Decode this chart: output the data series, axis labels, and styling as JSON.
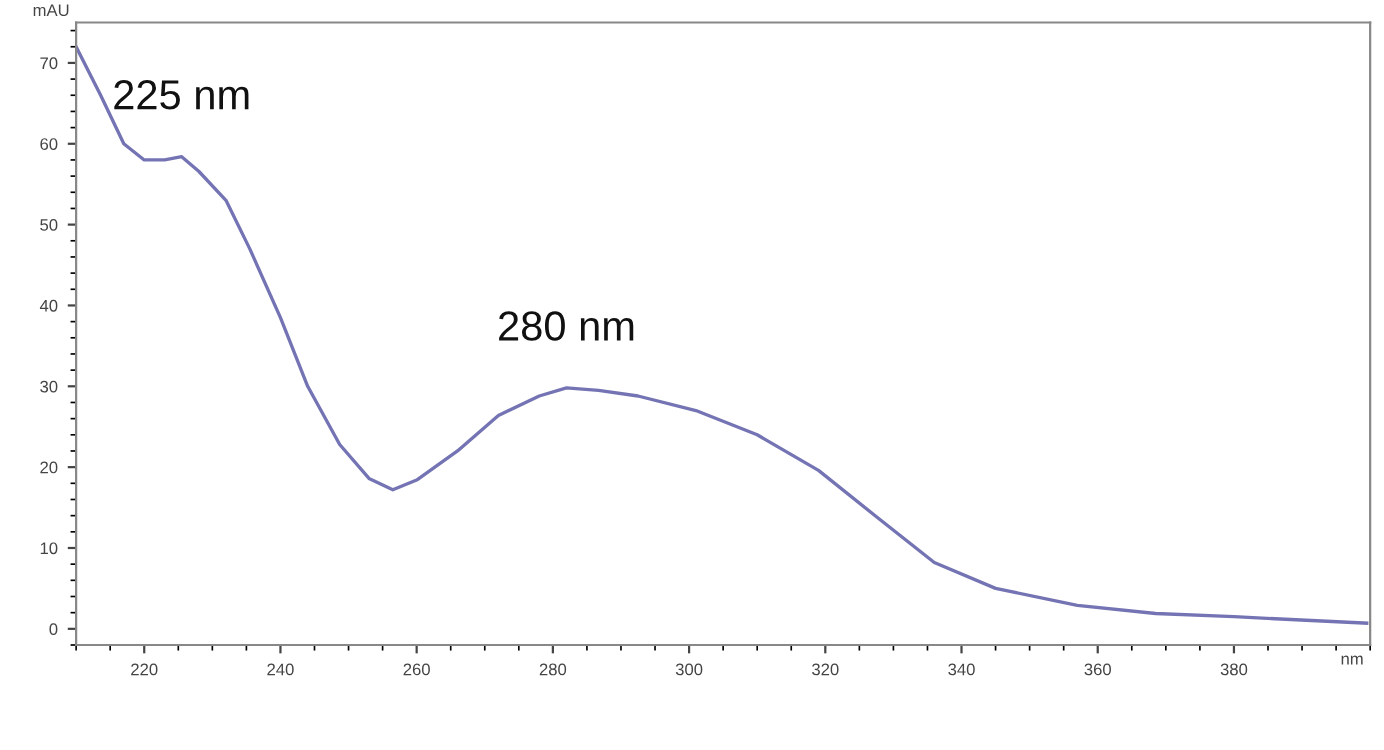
{
  "chart_data": {
    "type": "line",
    "xlabel": "nm",
    "ylabel": "mAU",
    "x": [
      210,
      213.6,
      217,
      220,
      223,
      225.5,
      228,
      232,
      235.5,
      240,
      244,
      248.7,
      253,
      256.5,
      260,
      266,
      272,
      278,
      282,
      286.7,
      292.5,
      301,
      310,
      319,
      327.6,
      336,
      345,
      357,
      368.5,
      380,
      399.5
    ],
    "series": [
      {
        "color": "#7474b4",
        "values": [
          72,
          66,
          60,
          58,
          58,
          58.4,
          56.6,
          53,
          47,
          38.5,
          30,
          22.8,
          18.6,
          17.2,
          18.4,
          22,
          26.4,
          28.8,
          29.8,
          29.5,
          28.8,
          27,
          24,
          19.6,
          13.8,
          8.2,
          5,
          2.9,
          1.9,
          1.5,
          0.7
        ]
      }
    ],
    "annotations": [
      {
        "text": "225 nm",
        "x": 225.5,
        "y": 58.4
      },
      {
        "text": "280 nm",
        "x": 282,
        "y": 29.8
      }
    ],
    "xlim": [
      210,
      400
    ],
    "ylim": [
      -2,
      75
    ],
    "xticks": [
      220,
      240,
      260,
      280,
      300,
      320,
      340,
      360,
      380
    ],
    "yticks": [
      0,
      10,
      20,
      30,
      40,
      50,
      60,
      70
    ],
    "grid": false,
    "legend": false,
    "marker": "none",
    "line_style": "solid"
  }
}
